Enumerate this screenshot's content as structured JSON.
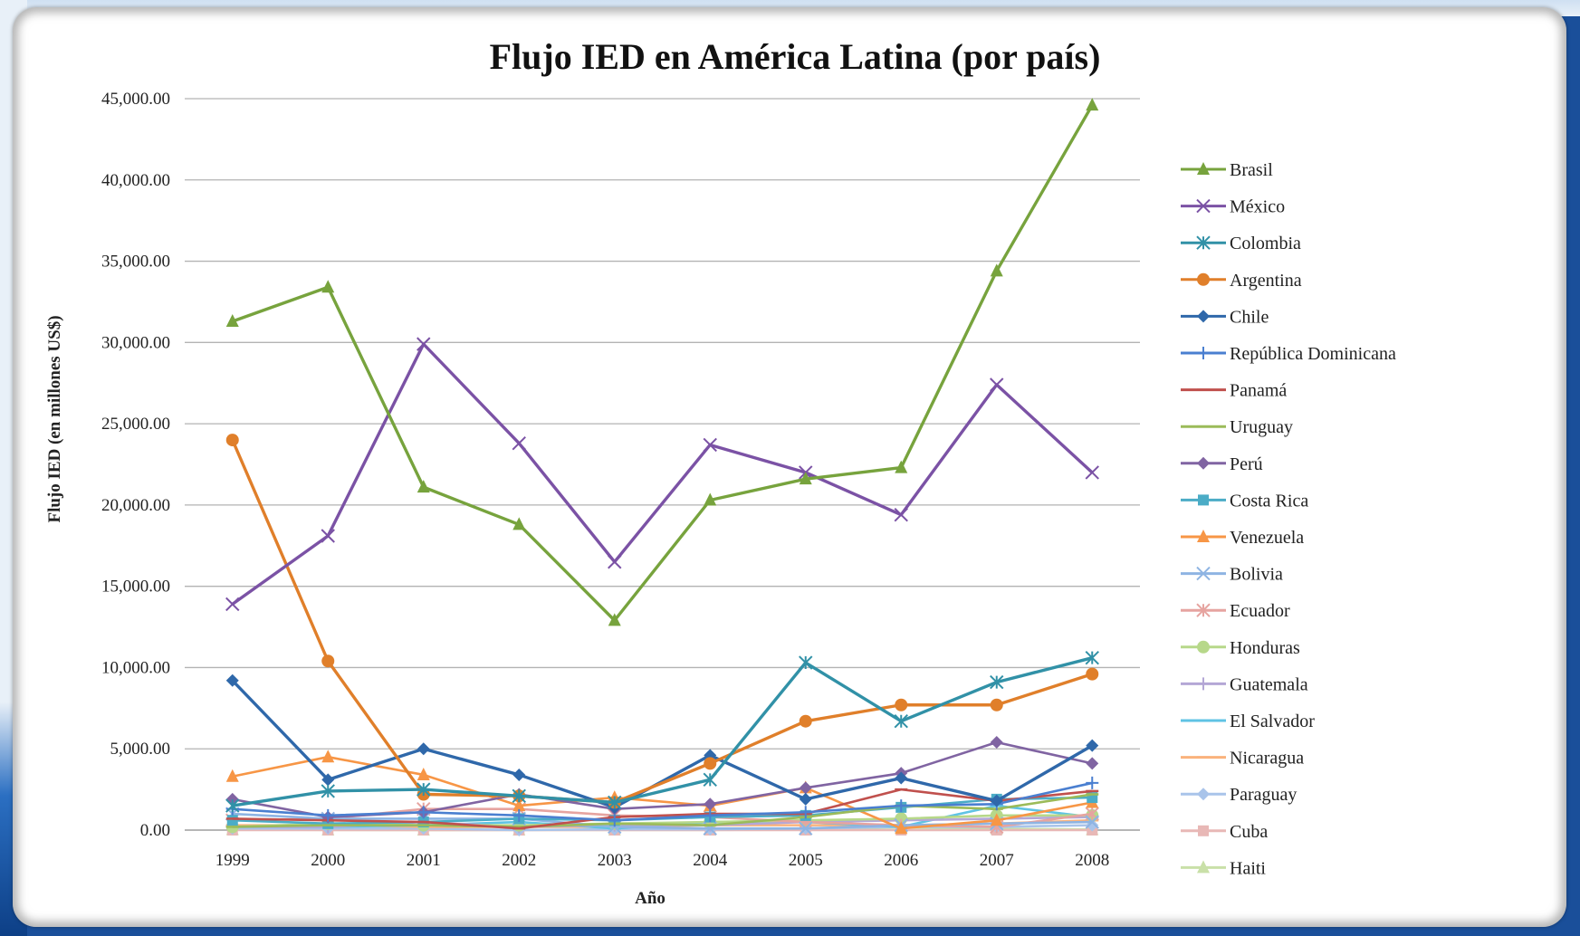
{
  "chart_data": {
    "type": "line",
    "title": "Flujo IED en América Latina (por país)",
    "xlabel": "Año",
    "ylabel": "Flujo IED (en millones US$)",
    "ylim": [
      0,
      45000
    ],
    "yticks": [
      0,
      5000,
      10000,
      15000,
      20000,
      25000,
      30000,
      35000,
      40000,
      45000
    ],
    "yticklabels": [
      "0.00",
      "5,000.00",
      "10,000.00",
      "15,000.00",
      "20,000.00",
      "25,000.00",
      "30,000.00",
      "35,000.00",
      "40,000.00",
      "45,000.00"
    ],
    "categories": [
      "1999",
      "2000",
      "2001",
      "2002",
      "2003",
      "2004",
      "2005",
      "2006",
      "2007",
      "2008"
    ],
    "grid": "horizontal",
    "legend_position": "right",
    "series": [
      {
        "name": "Brasil",
        "color": "#77a33d",
        "marker": "triangle",
        "values": [
          31300,
          33400,
          21100,
          18800,
          12900,
          20300,
          21600,
          22300,
          34400,
          44600
        ]
      },
      {
        "name": "México",
        "color": "#7b52a5",
        "marker": "x",
        "values": [
          13900,
          18100,
          29900,
          23800,
          16500,
          23700,
          22000,
          19400,
          27400,
          22000
        ]
      },
      {
        "name": "Colombia",
        "color": "#3191a7",
        "marker": "star",
        "values": [
          1500,
          2400,
          2500,
          2100,
          1700,
          3100,
          10300,
          6700,
          9100,
          10600
        ]
      },
      {
        "name": "Argentina",
        "color": "#e07f2a",
        "marker": "circle",
        "values": [
          24000,
          10400,
          2200,
          2100,
          1700,
          4100,
          6700,
          7700,
          7700,
          9600
        ]
      },
      {
        "name": "Chile",
        "color": "#2f68aa",
        "marker": "diamond",
        "values": [
          9200,
          3100,
          5000,
          3400,
          1400,
          4600,
          1900,
          3200,
          1800,
          5200
        ]
      },
      {
        "name": "República Dominicana",
        "color": "#4a7fd0",
        "marker": "plus",
        "values": [
          1300,
          900,
          1100,
          900,
          600,
          900,
          1100,
          1500,
          1600,
          2900
        ]
      },
      {
        "name": "Panamá",
        "color": "#c0504d",
        "marker": "dash",
        "values": [
          700,
          600,
          500,
          100,
          800,
          1000,
          1000,
          2500,
          1800,
          2400
        ]
      },
      {
        "name": "Uruguay",
        "color": "#9bbb59",
        "marker": "dash",
        "values": [
          200,
          300,
          300,
          200,
          400,
          300,
          800,
          1500,
          1300,
          2200
        ]
      },
      {
        "name": "Perú",
        "color": "#8064a2",
        "marker": "diamond",
        "values": [
          1900,
          800,
          1100,
          2200,
          1300,
          1600,
          2600,
          3500,
          5400,
          4100
        ]
      },
      {
        "name": "Costa Rica",
        "color": "#4bacc6",
        "marker": "square",
        "values": [
          600,
          400,
          500,
          700,
          600,
          800,
          900,
          1400,
          1900,
          2000
        ]
      },
      {
        "name": "Venezuela",
        "color": "#f79646",
        "marker": "triangle",
        "values": [
          3300,
          4500,
          3400,
          1500,
          2000,
          1500,
          2600,
          100,
          600,
          1700
        ]
      },
      {
        "name": "Bolivia",
        "color": "#8eb4e3",
        "marker": "x",
        "values": [
          1000,
          700,
          700,
          700,
          200,
          100,
          100,
          300,
          400,
          500
        ]
      },
      {
        "name": "Ecuador",
        "color": "#e6a4a0",
        "marker": "star",
        "values": [
          600,
          700,
          1300,
          1300,
          900,
          800,
          500,
          300,
          200,
          1000
        ]
      },
      {
        "name": "Honduras",
        "color": "#b7d88a",
        "marker": "circle",
        "values": [
          200,
          400,
          300,
          300,
          400,
          500,
          600,
          700,
          900,
          900
        ]
      },
      {
        "name": "Guatemala",
        "color": "#b4a7d6",
        "marker": "plus",
        "values": [
          200,
          200,
          500,
          200,
          300,
          300,
          500,
          600,
          700,
          800
        ]
      },
      {
        "name": "El Salvador",
        "color": "#5fc3e4",
        "marker": "dash",
        "values": [
          200,
          200,
          300,
          500,
          100,
          500,
          500,
          200,
          1500,
          800
        ]
      },
      {
        "name": "Nicaragua",
        "color": "#fab27c",
        "marker": "dash",
        "values": [
          300,
          300,
          200,
          200,
          200,
          300,
          300,
          300,
          400,
          600
        ]
      },
      {
        "name": "Paraguay",
        "color": "#a9c4ea",
        "marker": "diamond",
        "values": [
          100,
          100,
          100,
          0,
          50,
          50,
          100,
          200,
          200,
          300
        ]
      },
      {
        "name": "Cuba",
        "color": "#e8b8b6",
        "marker": "square",
        "values": [
          0,
          0,
          0,
          0,
          0,
          0,
          0,
          0,
          0,
          0
        ]
      },
      {
        "name": "Haiti",
        "color": "#c9e0a8",
        "marker": "triangle",
        "values": [
          30,
          10,
          0,
          10,
          10,
          10,
          30,
          160,
          80,
          30
        ]
      }
    ]
  }
}
